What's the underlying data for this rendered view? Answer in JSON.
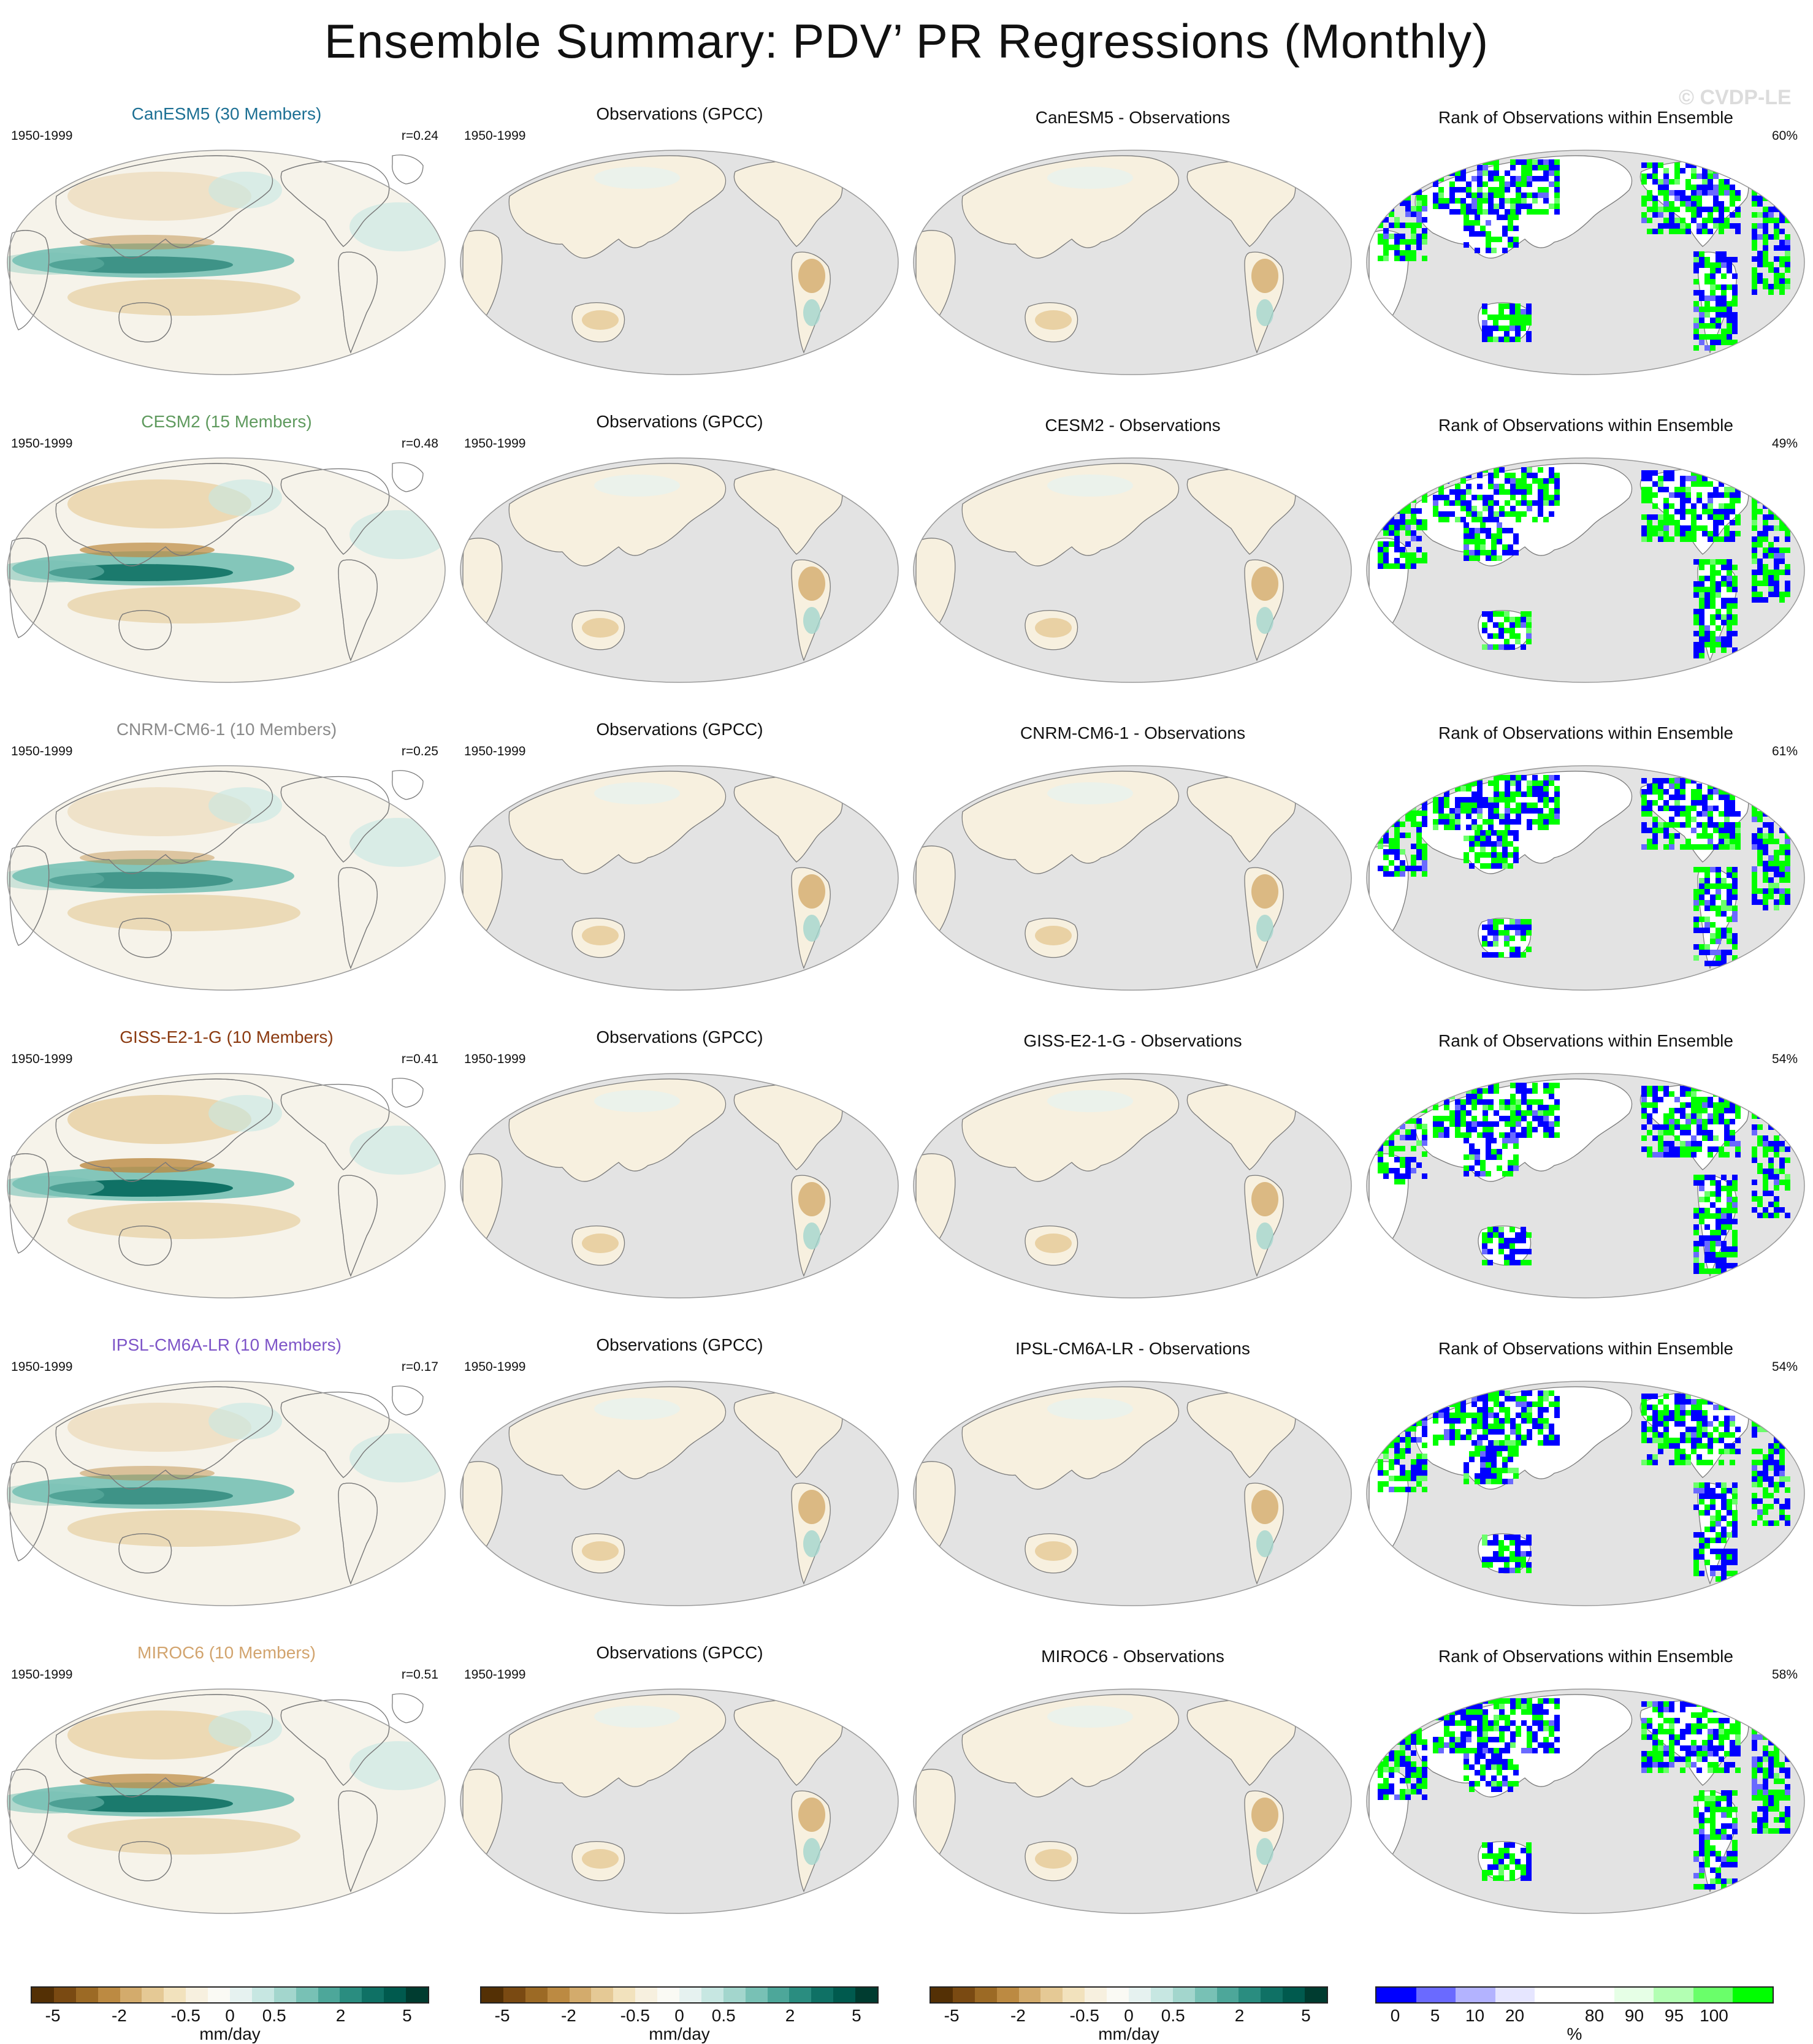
{
  "title": "Ensemble Summary: PDV’ PR Regressions (Monthly)",
  "watermark": "© CVDP-LE",
  "rows": [
    {
      "model": {
        "title": "CanESM5 (30 Members)",
        "color": "#1d7094",
        "period": "1950-1999",
        "r": "r=0.24"
      },
      "obs": {
        "title": "Observations (GPCC)",
        "period": "1950-1999"
      },
      "diff": {
        "title": "CanESM5 - Observations"
      },
      "rank": {
        "title": "Rank of Observations within Ensemble",
        "pct": "60%"
      }
    },
    {
      "model": {
        "title": "CESM2 (15 Members)",
        "color": "#5f9a5e",
        "period": "1950-1999",
        "r": "r=0.48"
      },
      "obs": {
        "title": "Observations (GPCC)",
        "period": "1950-1999"
      },
      "diff": {
        "title": "CESM2 - Observations"
      },
      "rank": {
        "title": "Rank of Observations within Ensemble",
        "pct": "49%"
      }
    },
    {
      "model": {
        "title": "CNRM-CM6-1 (10 Members)",
        "color": "#8a8a8a",
        "period": "1950-1999",
        "r": "r=0.25"
      },
      "obs": {
        "title": "Observations (GPCC)",
        "period": "1950-1999"
      },
      "diff": {
        "title": "CNRM-CM6-1 - Observations"
      },
      "rank": {
        "title": "Rank of Observations within Ensemble",
        "pct": "61%"
      }
    },
    {
      "model": {
        "title": "GISS-E2-1-G (10 Members)",
        "color": "#8b3a10",
        "period": "1950-1999",
        "r": "r=0.41"
      },
      "obs": {
        "title": "Observations (GPCC)",
        "period": "1950-1999"
      },
      "diff": {
        "title": "GISS-E2-1-G - Observations"
      },
      "rank": {
        "title": "Rank of Observations within Ensemble",
        "pct": "54%"
      }
    },
    {
      "model": {
        "title": "IPSL-CM6A-LR (10 Members)",
        "color": "#7e55c8",
        "period": "1950-1999",
        "r": "r=0.17"
      },
      "obs": {
        "title": "Observations (GPCC)",
        "period": "1950-1999"
      },
      "diff": {
        "title": "IPSL-CM6A-LR - Observations"
      },
      "rank": {
        "title": "Rank of Observations within Ensemble",
        "pct": "54%"
      }
    },
    {
      "model": {
        "title": "MIROC6 (10 Members)",
        "color": "#d2a46e",
        "period": "1950-1999",
        "r": "r=0.51"
      },
      "obs": {
        "title": "Observations (GPCC)",
        "period": "1950-1999"
      },
      "diff": {
        "title": "MIROC6 - Observations"
      },
      "rank": {
        "title": "Rank of Observations within Ensemble",
        "pct": "58%"
      }
    }
  ],
  "colorbars": {
    "pr": {
      "colors": [
        "#543005",
        "#7a4a12",
        "#9c6a25",
        "#bc8a42",
        "#d3ab6c",
        "#e5c995",
        "#f2e2bd",
        "#f7f0df",
        "#fafaf4",
        "#e6f2f0",
        "#c7e7e2",
        "#a3d6cd",
        "#78c1b5",
        "#4da79a",
        "#2a8d80",
        "#0f7165",
        "#005a4e",
        "#003c30"
      ],
      "ticks": [
        "-5",
        "-2",
        "-0.5",
        "0",
        "0.5",
        "2",
        "5"
      ],
      "units": "mm/day"
    },
    "rank": {
      "colors": [
        "#0000ff",
        "#6a6aff",
        "#b3b3ff",
        "#e6e6ff",
        "#ffffff",
        "#ffffff",
        "#e6ffe6",
        "#b3ffb3",
        "#6aff6a",
        "#00ff00"
      ],
      "ticks": [
        "0",
        "5",
        "10",
        "20",
        "80",
        "90",
        "95",
        "100"
      ],
      "units": "%"
    }
  }
}
